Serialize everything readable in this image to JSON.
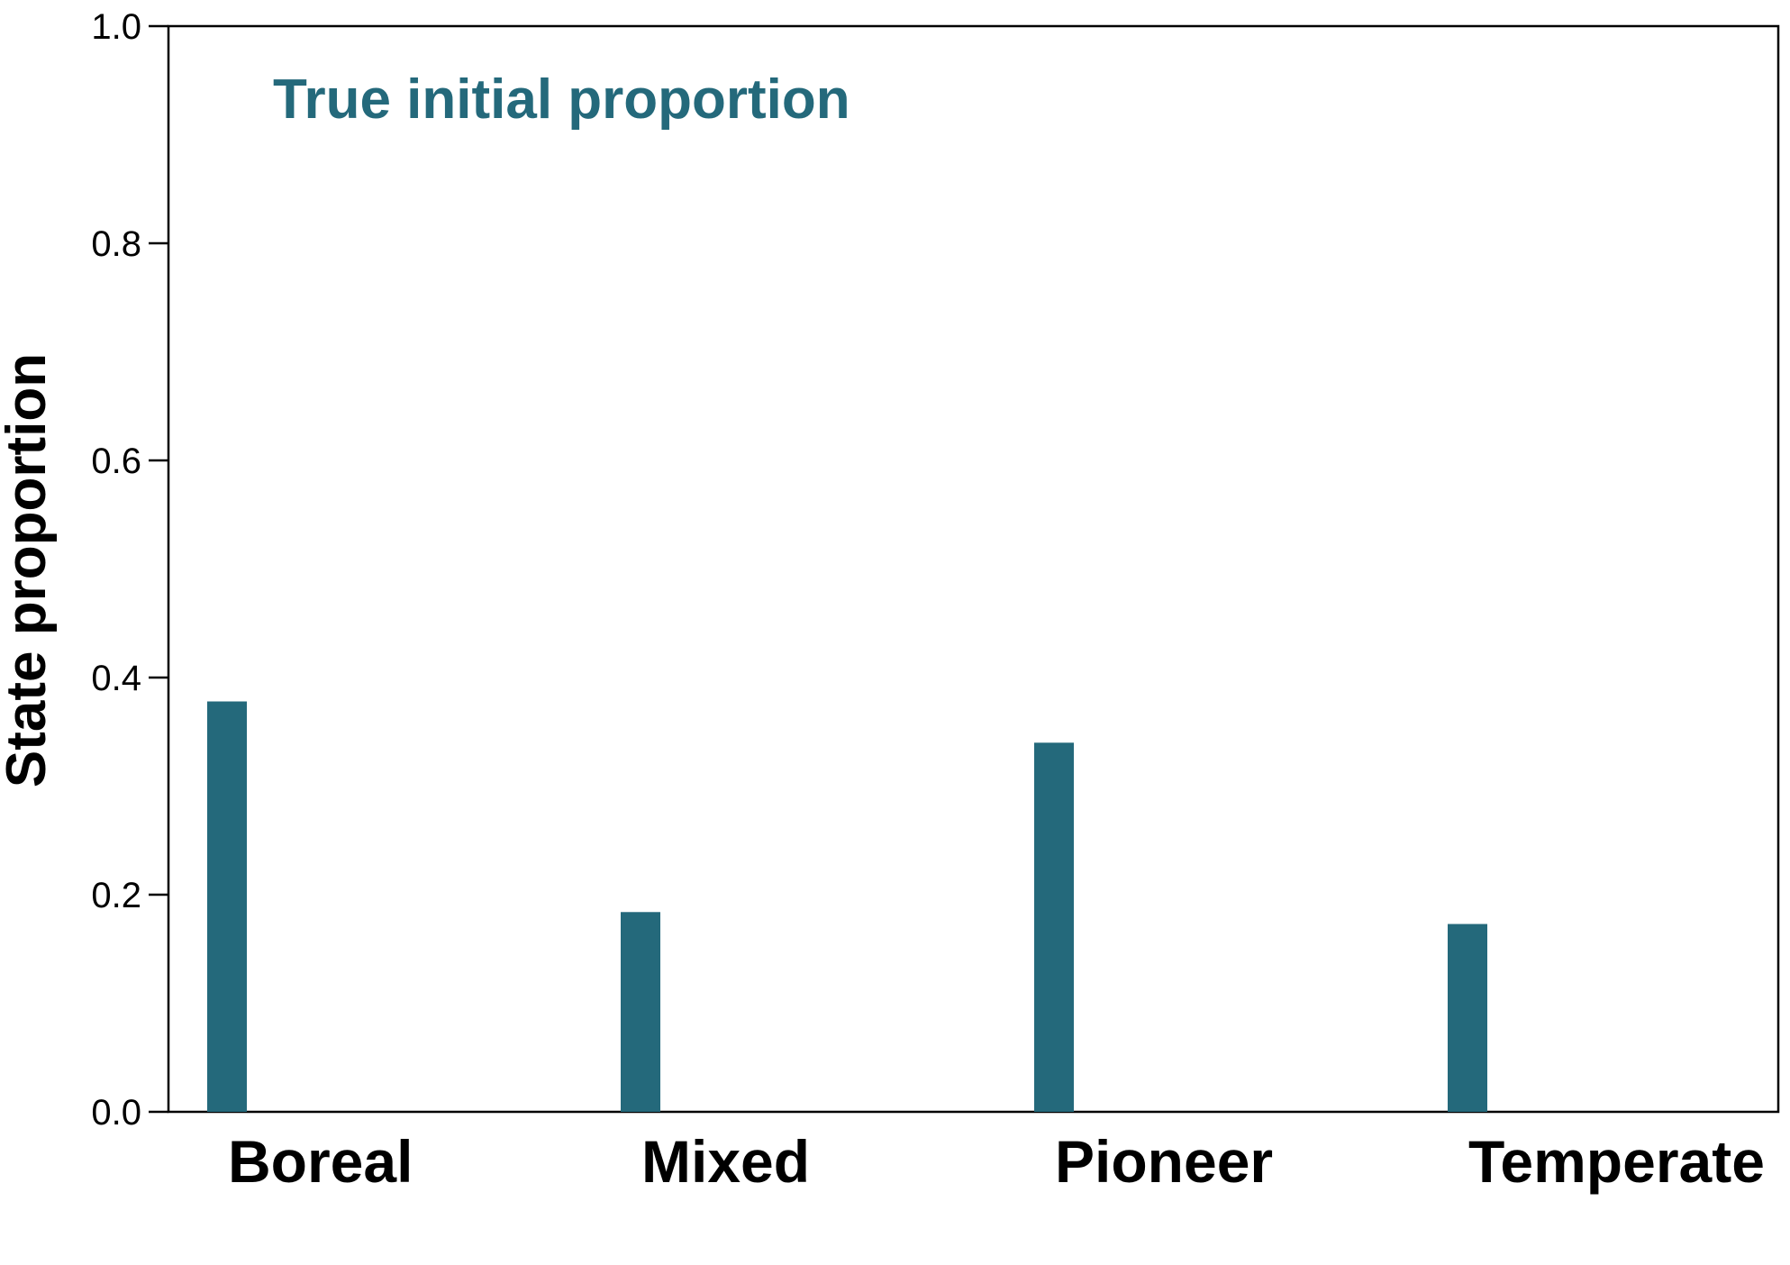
{
  "chart_data": {
    "type": "bar",
    "categories": [
      "Boreal",
      "Mixed",
      "Pioneer",
      "Temperate"
    ],
    "values": [
      0.378,
      0.184,
      0.34,
      0.173
    ],
    "title": "",
    "annotation": "True initial proportion",
    "xlabel": "",
    "ylabel": "State proportion",
    "ylim": [
      0.0,
      1.0
    ],
    "yticks": [
      0.0,
      0.2,
      0.4,
      0.6,
      0.8,
      1.0
    ],
    "ytick_labels": [
      "0.0",
      "0.2",
      "0.4",
      "0.6",
      "0.8",
      "1.0"
    ],
    "grid": false,
    "legend": "none",
    "colors": {
      "bar": "#24697b",
      "annotation": "#24697b",
      "axis": "#000000"
    }
  }
}
